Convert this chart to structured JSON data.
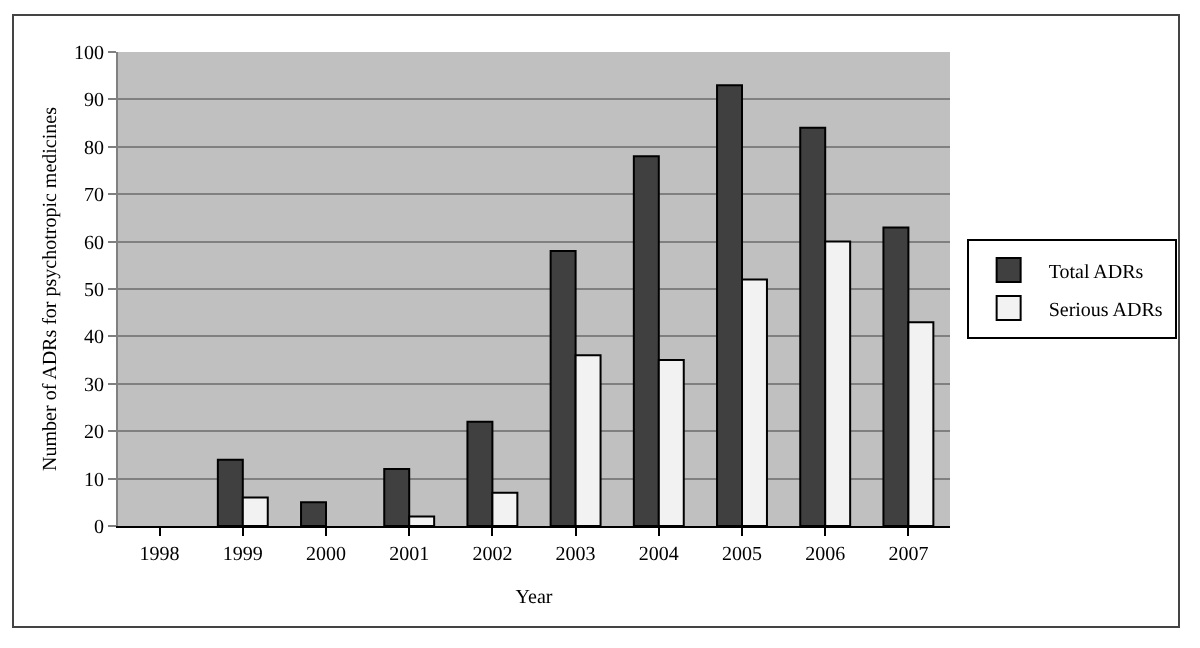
{
  "chart_data": {
    "type": "bar",
    "xlabel": "Year",
    "ylabel": "Number of ADRs for psychotropic medicines",
    "categories": [
      "1998",
      "1999",
      "2000",
      "2001",
      "2002",
      "2003",
      "2004",
      "2005",
      "2006",
      "2007"
    ],
    "series": [
      {
        "name": "Total ADRs",
        "color": "#404040",
        "values": [
          null,
          14,
          5,
          12,
          22,
          58,
          78,
          93,
          84,
          63
        ]
      },
      {
        "name": "Serious ADRs",
        "color": "#f2f2f2",
        "values": [
          null,
          6,
          null,
          2,
          7,
          36,
          35,
          52,
          60,
          43
        ]
      }
    ],
    "ylim": [
      0,
      100
    ],
    "yticks": [
      0,
      10,
      20,
      30,
      40,
      50,
      60,
      70,
      80,
      90,
      100
    ],
    "grid": "y",
    "legend": "right"
  }
}
